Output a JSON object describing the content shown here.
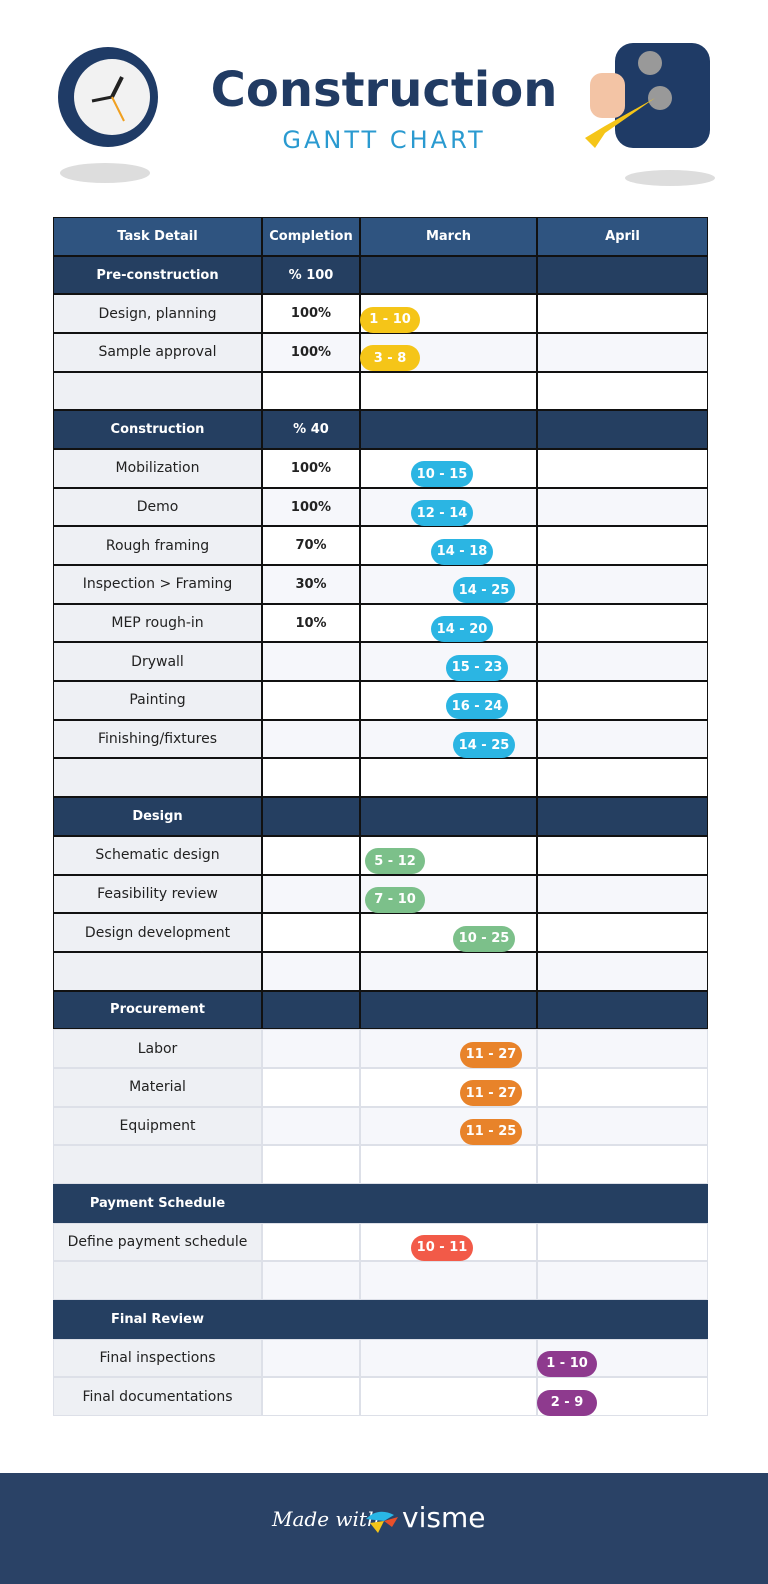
{
  "header": {
    "title": "Construction",
    "subtitle": "GANTT CHART"
  },
  "table": {
    "columns": [
      "Task Detail",
      "Completion",
      "March",
      "April"
    ],
    "sections": [
      {
        "name": "Pre-construction",
        "completion": "% 100",
        "color": "#f5c518",
        "tasks": [
          {
            "name": "Design, planning",
            "completion": "100%",
            "march": "1 - 10"
          },
          {
            "name": "Sample approval",
            "completion": "100%",
            "march": "3 - 8"
          }
        ]
      },
      {
        "name": "Construction",
        "completion": "% 40",
        "color": "#2bb5e3",
        "tasks": [
          {
            "name": "Mobilization",
            "completion": "100%",
            "march": "10 - 15"
          },
          {
            "name": "Demo",
            "completion": "100%",
            "march": "12 - 14"
          },
          {
            "name": "Rough framing",
            "completion": "70%",
            "march": "14 - 18"
          },
          {
            "name": "Inspection > Framing",
            "completion": "30%",
            "march": "14 - 25"
          },
          {
            "name": "MEP rough-in",
            "completion": "10%",
            "march": "14 - 20"
          },
          {
            "name": "Drywall",
            "march": "15 - 23"
          },
          {
            "name": "Painting",
            "march": "16 - 24"
          },
          {
            "name": "Finishing/fixtures",
            "march": "14 - 25"
          }
        ]
      },
      {
        "name": "Design",
        "color": "#7cc08a",
        "tasks": [
          {
            "name": "Schematic design",
            "march": "5 - 12"
          },
          {
            "name": "Feasibility review",
            "march": "7 - 10"
          },
          {
            "name": "Design development",
            "march": "10 - 25"
          }
        ]
      },
      {
        "name": "Procurement",
        "color": "#e8832a",
        "tasks": [
          {
            "name": "Labor",
            "march": "11 - 27"
          },
          {
            "name": "Material",
            "march": "11 - 27"
          },
          {
            "name": "Equipment",
            "march": "11 - 25"
          }
        ]
      },
      {
        "name": "Payment Schedule",
        "color": "#f25a48",
        "tasks": [
          {
            "name": "Define payment schedule",
            "march": "10 - 11"
          }
        ]
      },
      {
        "name": "Final Review",
        "color": "#8e3a8e",
        "tasks": [
          {
            "name": "Final inspections",
            "april": "1 - 10"
          },
          {
            "name": "Final documentations",
            "april": "2 - 9"
          }
        ]
      }
    ]
  },
  "footer": {
    "made_with": "Made with",
    "brand": "visme"
  }
}
